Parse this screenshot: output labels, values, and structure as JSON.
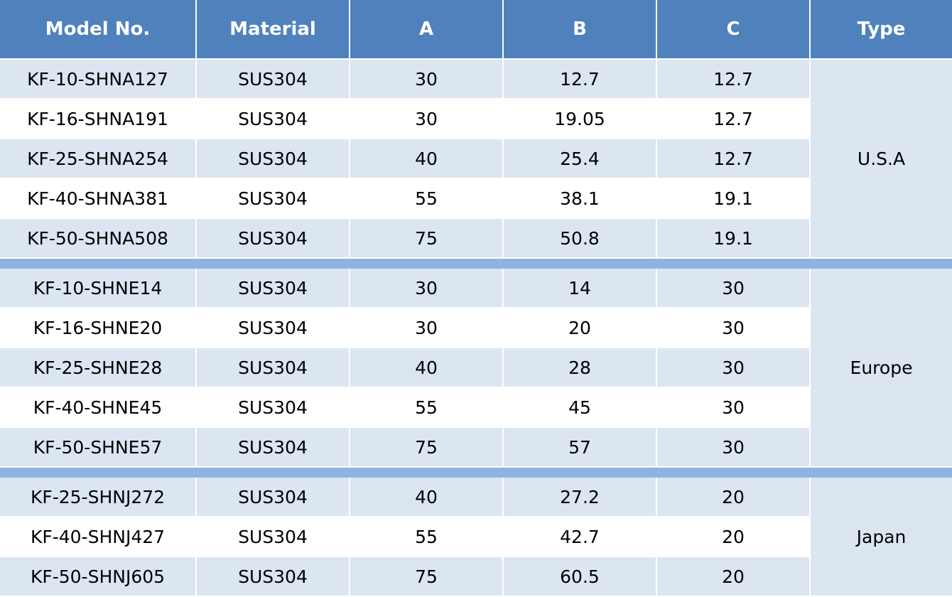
{
  "columns": [
    "Model No.",
    "Material",
    "A",
    "B",
    "C",
    "Type"
  ],
  "groups": [
    {
      "type": "U.S.A",
      "rows": [
        [
          "KF-10-SHNA127",
          "SUS304",
          "30",
          "12.7",
          "12.7"
        ],
        [
          "KF-16-SHNA191",
          "SUS304",
          "30",
          "19.05",
          "12.7"
        ],
        [
          "KF-25-SHNA254",
          "SUS304",
          "40",
          "25.4",
          "12.7"
        ],
        [
          "KF-40-SHNA381",
          "SUS304",
          "55",
          "38.1",
          "19.1"
        ],
        [
          "KF-50-SHNA508",
          "SUS304",
          "75",
          "50.8",
          "19.1"
        ]
      ]
    },
    {
      "type": "Europe",
      "rows": [
        [
          "KF-10-SHNE14",
          "SUS304",
          "30",
          "14",
          "30"
        ],
        [
          "KF-16-SHNE20",
          "SUS304",
          "30",
          "20",
          "30"
        ],
        [
          "KF-25-SHNE28",
          "SUS304",
          "40",
          "28",
          "30"
        ],
        [
          "KF-40-SHNE45",
          "SUS304",
          "55",
          "45",
          "30"
        ],
        [
          "KF-50-SHNE57",
          "SUS304",
          "75",
          "57",
          "30"
        ]
      ]
    },
    {
      "type": "Japan",
      "rows": [
        [
          "KF-25-SHNJ272",
          "SUS304",
          "40",
          "27.2",
          "20"
        ],
        [
          "KF-40-SHNJ427",
          "SUS304",
          "55",
          "42.7",
          "20"
        ],
        [
          "KF-50-SHNJ605",
          "SUS304",
          "75",
          "60.5",
          "20"
        ]
      ]
    }
  ],
  "colors": {
    "header_bg": "#4f81bd",
    "header_text": "#ffffff",
    "band_row": "#dce6f1",
    "plain_row": "#ffffff",
    "group_separator": "#8db3e2"
  }
}
